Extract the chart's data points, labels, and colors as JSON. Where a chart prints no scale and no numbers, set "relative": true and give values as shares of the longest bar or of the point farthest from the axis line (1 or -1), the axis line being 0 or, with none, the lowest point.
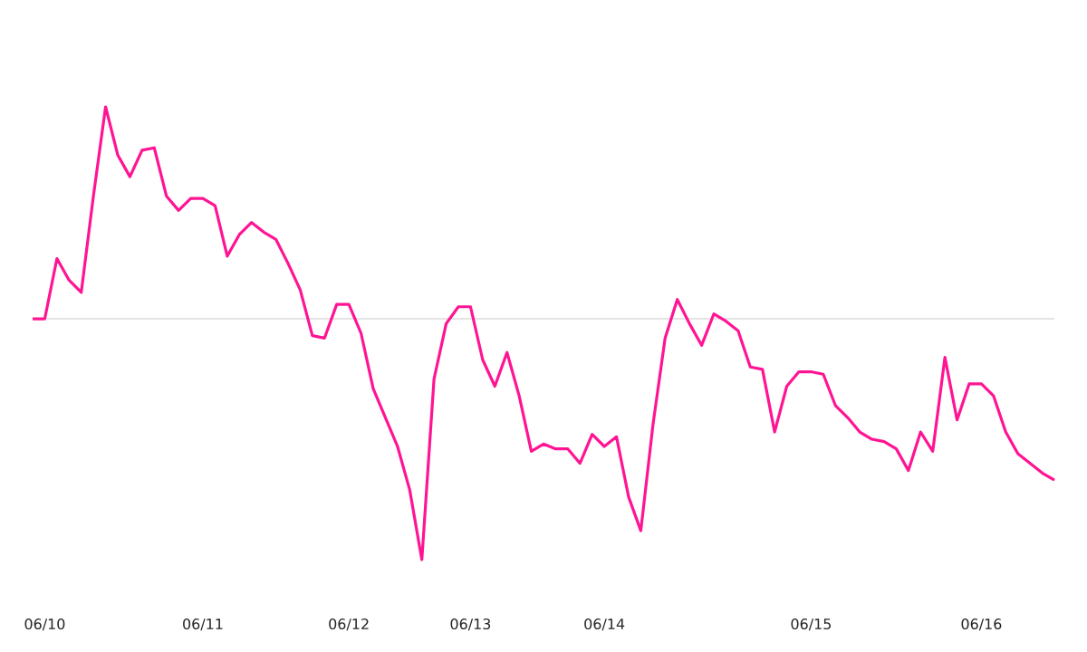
{
  "chart_data": {
    "type": "line",
    "relative": true,
    "color": "#ff1493",
    "grid": false,
    "tick_labels": "x",
    "marker": "none",
    "categories": [
      null,
      "06/10",
      null,
      null,
      null,
      null,
      null,
      null,
      null,
      null,
      null,
      null,
      null,
      null,
      "06/11",
      null,
      null,
      null,
      null,
      null,
      null,
      null,
      null,
      null,
      null,
      null,
      "06/12",
      null,
      null,
      null,
      null,
      null,
      null,
      null,
      null,
      null,
      "06/13",
      null,
      null,
      null,
      null,
      null,
      null,
      null,
      null,
      null,
      null,
      "06/14",
      null,
      null,
      null,
      null,
      null,
      null,
      null,
      null,
      null,
      null,
      null,
      null,
      null,
      null,
      null,
      null,
      "06/15",
      null,
      null,
      null,
      null,
      null,
      null,
      null,
      null,
      null,
      null,
      null,
      null,
      null,
      "06/16",
      null,
      null,
      null,
      null,
      null,
      null
    ],
    "values": [
      0,
      0,
      0.25,
      0.16,
      0.11,
      0.51,
      0.88,
      0.68,
      0.59,
      0.7,
      0.71,
      0.51,
      0.45,
      0.5,
      0.5,
      0.47,
      0.26,
      0.35,
      0.4,
      0.36,
      0.33,
      0.23,
      0.12,
      -0.07,
      -0.08,
      0.06,
      0.06,
      -0.06,
      -0.29,
      -0.41,
      -0.53,
      -0.71,
      -1,
      -0.25,
      -0.02,
      0.05,
      0.05,
      -0.17,
      -0.28,
      -0.14,
      -0.32,
      -0.55,
      -0.52,
      -0.54,
      -0.54,
      -0.6,
      -0.48,
      -0.53,
      -0.49,
      -0.74,
      -0.88,
      -0.44,
      -0.08,
      0.08,
      -0.02,
      -0.11,
      0.02,
      -0.01,
      -0.05,
      -0.2,
      -0.21,
      -0.47,
      -0.28,
      -0.22,
      -0.22,
      -0.23,
      -0.36,
      -0.41,
      -0.47,
      -0.5,
      -0.51,
      -0.54,
      -0.63,
      -0.47,
      -0.55,
      -0.16,
      -0.42,
      -0.27,
      -0.27,
      -0.32,
      -0.47,
      -0.56,
      -0.6,
      -0.64,
      -0.67
    ]
  }
}
